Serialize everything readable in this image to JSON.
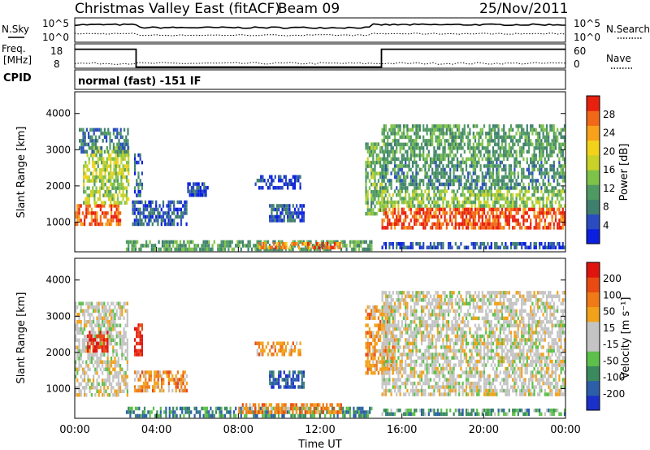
{
  "header": {
    "title": "Christmas Valley East (fitACF)",
    "beam": "Beam 09",
    "date": "25/Nov/2011"
  },
  "sky_panel": {
    "left_label": "N.Sky",
    "right_label": "N.Search",
    "ticks_left": [
      "10^5",
      "10^0"
    ],
    "ticks_right": [
      "10^5",
      "10^0"
    ],
    "nsky_level": 0.72,
    "nsearch_level": 0.35
  },
  "freq_panel": {
    "left_label_1": "Freq.",
    "left_label_2": "[MHz]",
    "right_label": "Nave",
    "ticks_left": [
      "18",
      "8"
    ],
    "ticks_right": [
      "60",
      "0"
    ],
    "freq_steps": [
      {
        "t": 0,
        "level": 0.78
      },
      {
        "t": 3.0,
        "level": 0.05
      },
      {
        "t": 15.0,
        "level": 0.78
      }
    ]
  },
  "cpid": {
    "label": "CPID",
    "text": "normal (fast) -151 IF"
  },
  "time_axis": {
    "label": "Time UT",
    "ticks": [
      "00:00",
      "04:00",
      "08:00",
      "12:00",
      "16:00",
      "20:00",
      "00:00"
    ],
    "range_hours": [
      0,
      24
    ]
  },
  "chart_data": [
    {
      "type": "heatmap",
      "name": "power",
      "ylabel": "Slant Range [km]",
      "ylim": [
        180,
        4600
      ],
      "yticks": [
        "1000",
        "2000",
        "3000",
        "4000"
      ],
      "colorbar": {
        "label": "Power [dB]",
        "ticks": [
          "4",
          "8",
          "12",
          "16",
          "20",
          "24",
          "28"
        ],
        "colors": [
          "#0a1fe0",
          "#2a4cc0",
          "#3f7f6e",
          "#4f9a63",
          "#7fc24a",
          "#c8d228",
          "#f2d21a",
          "#f7a21a",
          "#f16818",
          "#e8200e"
        ]
      },
      "regions": [
        {
          "t0": 0.0,
          "t1": 2.2,
          "r0": 900,
          "r1": 1500,
          "level": 0.85
        },
        {
          "t0": 0.4,
          "t1": 2.6,
          "r0": 1500,
          "r1": 3100,
          "level": 0.5
        },
        {
          "t0": 0.2,
          "t1": 2.6,
          "r0": 2900,
          "r1": 3600,
          "level": 0.25
        },
        {
          "t0": 2.8,
          "t1": 5.5,
          "r0": 900,
          "r1": 1600,
          "level": 0.15
        },
        {
          "t0": 2.9,
          "t1": 3.3,
          "r0": 1700,
          "r1": 2900,
          "level": 0.2
        },
        {
          "t0": 5.5,
          "t1": 6.5,
          "r0": 1700,
          "r1": 2100,
          "level": 0.1
        },
        {
          "t0": 8.8,
          "t1": 11.0,
          "r0": 1900,
          "r1": 2300,
          "level": 0.1
        },
        {
          "t0": 9.5,
          "t1": 11.2,
          "r0": 1000,
          "r1": 1500,
          "level": 0.15
        },
        {
          "t0": 2.5,
          "t1": 14.5,
          "r0": 250,
          "r1": 500,
          "level": 0.35
        },
        {
          "t0": 9.0,
          "t1": 13.0,
          "r0": 250,
          "r1": 450,
          "level": 0.8
        },
        {
          "t0": 14.2,
          "t1": 15.2,
          "r0": 1200,
          "r1": 3200,
          "level": 0.4
        },
        {
          "t0": 15.0,
          "t1": 24.0,
          "r0": 850,
          "r1": 1400,
          "level": 0.9
        },
        {
          "t0": 15.0,
          "t1": 24.0,
          "r0": 1400,
          "r1": 1900,
          "level": 0.45
        },
        {
          "t0": 15.0,
          "t1": 24.0,
          "r0": 1900,
          "r1": 2700,
          "level": 0.3
        },
        {
          "t0": 15.0,
          "t1": 24.0,
          "r0": 2700,
          "r1": 3700,
          "level": 0.35
        },
        {
          "t0": 15.0,
          "t1": 24.0,
          "r0": 250,
          "r1": 450,
          "level": 0.15
        }
      ]
    },
    {
      "type": "heatmap",
      "name": "velocity",
      "ylabel": "Slant Range [km]",
      "ylim": [
        180,
        4600
      ],
      "yticks": [
        "1000",
        "2000",
        "3000",
        "4000"
      ],
      "colorbar": {
        "label": "Velocity [m s⁻¹]",
        "ticks": [
          "200",
          "100",
          "50",
          "15",
          "-15",
          "-50",
          "-100",
          "-200"
        ],
        "colors": [
          "#1b30c8",
          "#2c5fa8",
          "#3a8a5e",
          "#5cc04a",
          "#c4c4c4",
          "#c4c4c4",
          "#f2a21a",
          "#ef7a16",
          "#e84a12",
          "#e0140e"
        ]
      },
      "regions": [
        {
          "t0": 0.0,
          "t1": 2.6,
          "r0": 800,
          "r1": 3400,
          "level": 0.5
        },
        {
          "t0": 0.6,
          "t1": 1.6,
          "r0": 2000,
          "r1": 2600,
          "level": 0.95
        },
        {
          "t0": 2.9,
          "t1": 5.5,
          "r0": 900,
          "r1": 1500,
          "level": 0.7
        },
        {
          "t0": 2.9,
          "t1": 3.3,
          "r0": 1900,
          "r1": 2800,
          "level": 0.95
        },
        {
          "t0": 8.8,
          "t1": 11.0,
          "r0": 1900,
          "r1": 2300,
          "level": 0.7
        },
        {
          "t0": 9.5,
          "t1": 11.2,
          "r0": 1000,
          "r1": 1500,
          "level": 0.15
        },
        {
          "t0": 2.5,
          "t1": 14.5,
          "r0": 250,
          "r1": 500,
          "level": 0.25
        },
        {
          "t0": 8.0,
          "t1": 13.0,
          "r0": 300,
          "r1": 600,
          "level": 0.7
        },
        {
          "t0": 14.2,
          "t1": 15.6,
          "r0": 1400,
          "r1": 3300,
          "level": 0.7
        },
        {
          "t0": 15.0,
          "t1": 24.0,
          "r0": 850,
          "r1": 1900,
          "level": 0.5
        },
        {
          "t0": 15.0,
          "t1": 24.0,
          "r0": 1900,
          "r1": 2700,
          "level": 0.5
        },
        {
          "t0": 15.0,
          "t1": 24.0,
          "r0": 2700,
          "r1": 3700,
          "level": 0.5
        },
        {
          "t0": 15.0,
          "t1": 24.0,
          "r0": 250,
          "r1": 450,
          "level": 0.3
        }
      ]
    }
  ]
}
